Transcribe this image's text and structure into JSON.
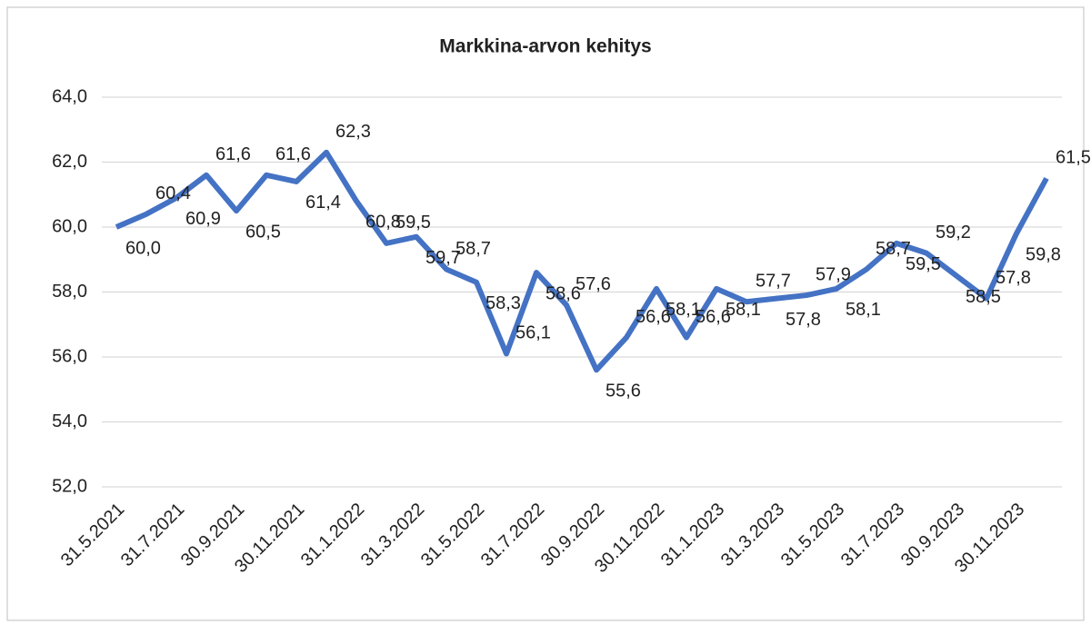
{
  "chart_data": {
    "type": "line",
    "title": "Markkina-arvon kehitys",
    "categories": [
      "31.5.2021",
      null,
      "31.7.2021",
      null,
      "30.9.2021",
      null,
      "30.11.2021",
      null,
      "31.1.2022",
      null,
      "31.3.2022",
      null,
      "31.5.2022",
      null,
      "31.7.2022",
      null,
      "30.9.2022",
      null,
      "30.11.2022",
      null,
      "31.1.2023",
      null,
      "31.3.2023",
      null,
      "31.5.2023",
      null,
      "31.7.2023",
      null,
      "30.9.2023",
      null,
      "30.11.2023",
      null
    ],
    "series": [
      {
        "name": "Markkina-arvo",
        "color": "#4472c4",
        "values": [
          60.0,
          60.4,
          60.9,
          61.6,
          60.5,
          61.6,
          61.4,
          62.3,
          60.8,
          59.5,
          59.7,
          58.7,
          58.3,
          56.1,
          58.6,
          57.6,
          55.6,
          56.6,
          58.1,
          56.6,
          58.1,
          57.7,
          57.8,
          57.9,
          58.1,
          58.7,
          59.5,
          59.2,
          58.5,
          57.8,
          59.8,
          61.5
        ],
        "value_labels": [
          "60,0",
          "60,4",
          "60,9",
          "61,6",
          "60,5",
          "61,6",
          "61,4",
          "62,3",
          "60,8",
          "59,5",
          "59,7",
          "58,7",
          "58,3",
          "56,1",
          "58,6",
          "57,6",
          "55,6",
          "56,6",
          "58,1",
          "56,6",
          "58,1",
          "57,7",
          "57,8",
          "57,9",
          "58,1",
          "58,7",
          "59,5",
          "59,2",
          "58,5",
          "57,8",
          "59,8",
          "61,5"
        ]
      }
    ],
    "ylim": [
      52,
      64
    ],
    "yticks": [
      {
        "value": 52,
        "label": "52,0"
      },
      {
        "value": 54,
        "label": "54,0"
      },
      {
        "value": 56,
        "label": "56,0"
      },
      {
        "value": 58,
        "label": "58,0"
      },
      {
        "value": 60,
        "label": "60,0"
      },
      {
        "value": 62,
        "label": "62,0"
      },
      {
        "value": 64,
        "label": "64,0"
      }
    ],
    "grid": true
  }
}
